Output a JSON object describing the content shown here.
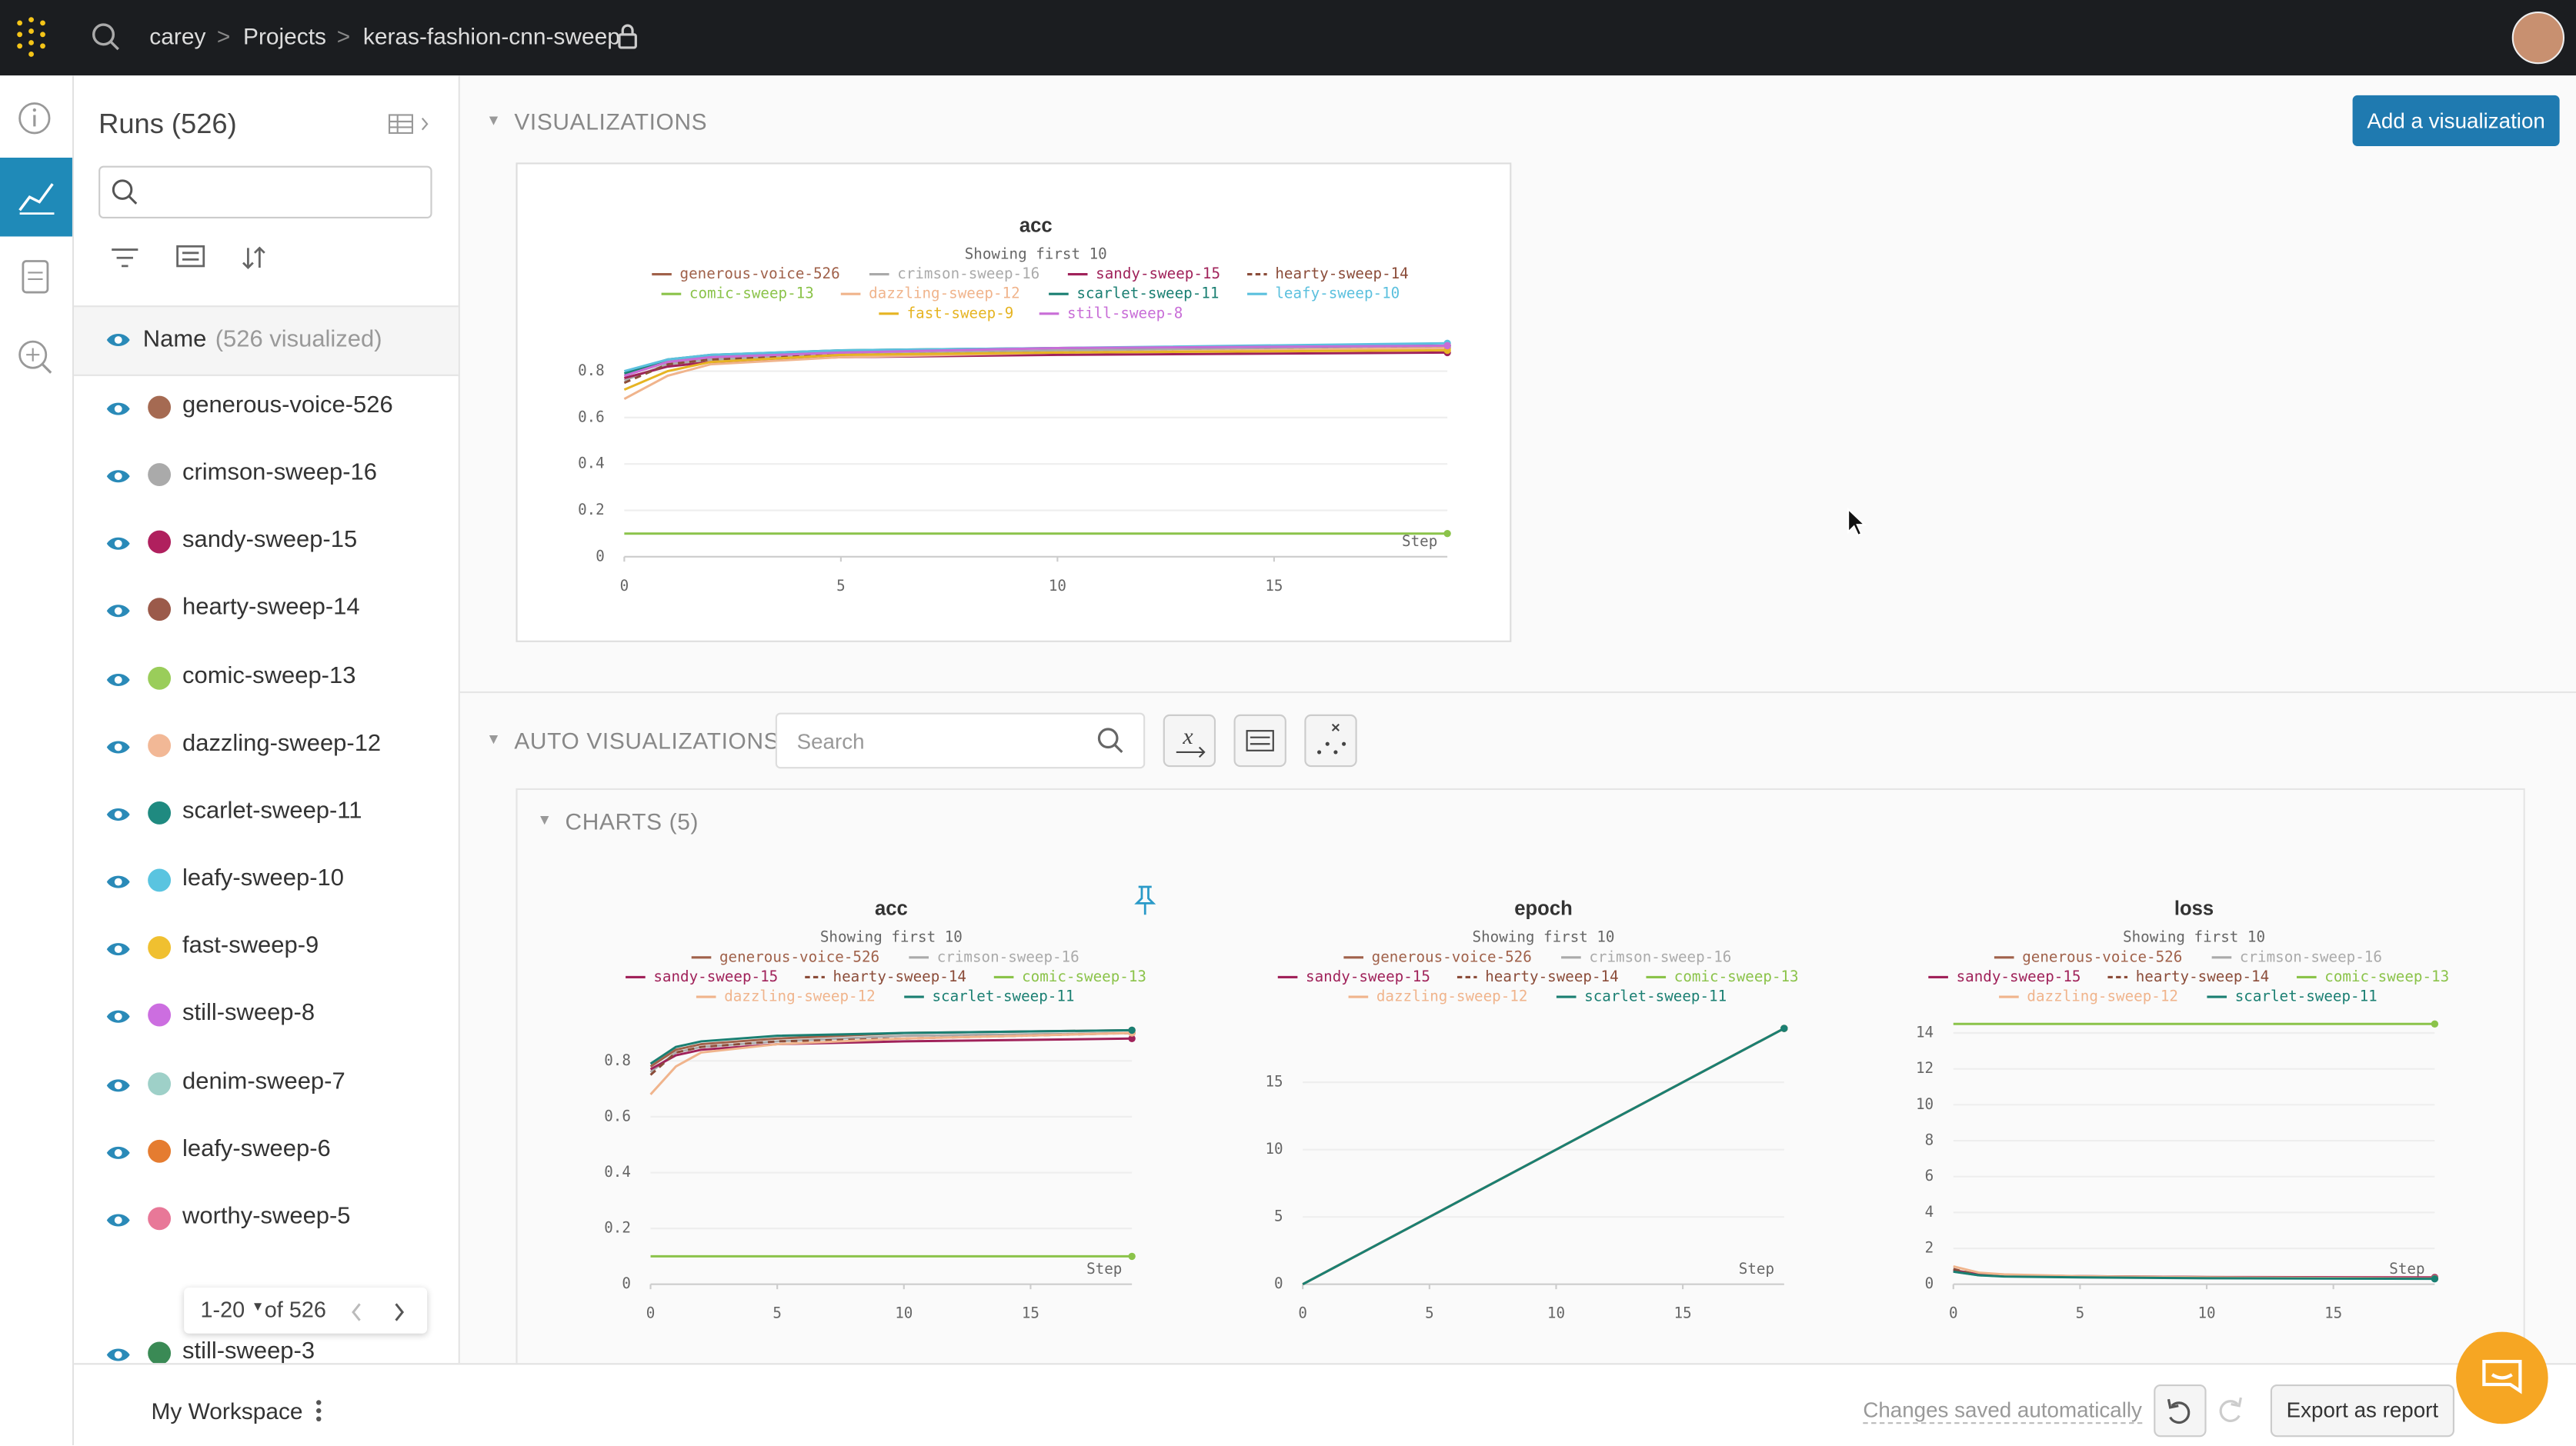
{
  "header": {
    "breadcrumbs": [
      "carey",
      "Projects",
      "keras-fashion-cnn-sweep"
    ]
  },
  "runs_panel": {
    "title": "Runs (526)",
    "name_header": "Name",
    "visualized": "(526 visualized)",
    "runs": [
      {
        "name": "generous-voice-526",
        "color": "#a56a52"
      },
      {
        "name": "crimson-sweep-16",
        "color": "#aaaaaa"
      },
      {
        "name": "sandy-sweep-15",
        "color": "#b0205e"
      },
      {
        "name": "hearty-sweep-14",
        "color": "#9b5a4a"
      },
      {
        "name": "comic-sweep-13",
        "color": "#9acd5a"
      },
      {
        "name": "dazzling-sweep-12",
        "color": "#f2b896"
      },
      {
        "name": "scarlet-sweep-11",
        "color": "#1f8a80"
      },
      {
        "name": "leafy-sweep-10",
        "color": "#5ac4e0"
      },
      {
        "name": "fast-sweep-9",
        "color": "#f0c030"
      },
      {
        "name": "still-sweep-8",
        "color": "#cc6ee0"
      },
      {
        "name": "denim-sweep-7",
        "color": "#9ed0c8"
      },
      {
        "name": "leafy-sweep-6",
        "color": "#e57c30"
      },
      {
        "name": "worthy-sweep-5",
        "color": "#e87898"
      },
      {
        "name": "still-sweep-3",
        "color": "#3a8a55"
      }
    ],
    "pagination": {
      "range": "1-20",
      "total": "of 526"
    }
  },
  "visualizations": {
    "title": "VISUALIZATIONS",
    "add_button": "Add a visualization"
  },
  "auto_visualizations": {
    "title": "AUTO VISUALIZATIONS",
    "search_placeholder": "Search",
    "charts_section": "CHARTS (5)"
  },
  "footer": {
    "workspace": "My Workspace",
    "saved": "Changes saved automatically",
    "export": "Export as report"
  },
  "chart_data": [
    {
      "type": "line",
      "title": "acc",
      "subtitle": "Showing first 10",
      "xlabel": "Step",
      "x": [
        0,
        1,
        2,
        5,
        10,
        19
      ],
      "xlim": [
        0,
        19
      ],
      "xticks": [
        0,
        5,
        10,
        15
      ],
      "ylim": [
        0,
        0.95
      ],
      "yticks": [
        0,
        0.2,
        0.4,
        0.6,
        0.8
      ],
      "grid": true,
      "series": [
        {
          "name": "generous-voice-526",
          "color": "#a0614a",
          "values": [
            0.78,
            0.84,
            0.86,
            0.88,
            0.9,
            0.91
          ]
        },
        {
          "name": "crimson-sweep-16",
          "color": "#aaaaaa",
          "values": [
            0.76,
            0.83,
            0.85,
            0.87,
            0.89,
            0.9
          ]
        },
        {
          "name": "sandy-sweep-15",
          "color": "#a0225a",
          "values": [
            0.77,
            0.82,
            0.84,
            0.86,
            0.87,
            0.88
          ]
        },
        {
          "name": "hearty-sweep-14",
          "color": "#8b4c39",
          "dashed": true,
          "values": [
            0.75,
            0.83,
            0.85,
            0.87,
            0.88,
            0.9
          ]
        },
        {
          "name": "comic-sweep-13",
          "color": "#8bc34a",
          "values": [
            0.1,
            0.1,
            0.1,
            0.1,
            0.1,
            0.1
          ]
        },
        {
          "name": "dazzling-sweep-12",
          "color": "#f0b48c",
          "values": [
            0.68,
            0.78,
            0.83,
            0.86,
            0.88,
            0.9
          ]
        },
        {
          "name": "scarlet-sweep-11",
          "color": "#1a7f72",
          "values": [
            0.79,
            0.85,
            0.87,
            0.89,
            0.9,
            0.91
          ]
        },
        {
          "name": "leafy-sweep-10",
          "color": "#5bc0de",
          "values": [
            0.8,
            0.85,
            0.87,
            0.89,
            0.9,
            0.92
          ]
        },
        {
          "name": "fast-sweep-9",
          "color": "#e6b422",
          "values": [
            0.72,
            0.8,
            0.84,
            0.87,
            0.88,
            0.89
          ]
        },
        {
          "name": "still-sweep-8",
          "color": "#c86dd7",
          "values": [
            0.78,
            0.84,
            0.86,
            0.88,
            0.9,
            0.91
          ]
        }
      ]
    },
    {
      "type": "line",
      "title": "acc",
      "subtitle": "Showing first 10",
      "xlabel": "Step",
      "x": [
        0,
        1,
        2,
        5,
        10,
        19
      ],
      "xlim": [
        0,
        19
      ],
      "xticks": [
        0,
        5,
        10,
        15
      ],
      "ylim": [
        0,
        0.95
      ],
      "yticks": [
        0,
        0.2,
        0.4,
        0.6,
        0.8
      ],
      "grid": true,
      "series": [
        {
          "name": "generous-voice-526",
          "color": "#a0614a",
          "values": [
            0.78,
            0.84,
            0.86,
            0.88,
            0.9,
            0.91
          ]
        },
        {
          "name": "crimson-sweep-16",
          "color": "#aaaaaa",
          "values": [
            0.76,
            0.83,
            0.85,
            0.87,
            0.89,
            0.9
          ]
        },
        {
          "name": "sandy-sweep-15",
          "color": "#a0225a",
          "values": [
            0.77,
            0.82,
            0.84,
            0.86,
            0.87,
            0.88
          ]
        },
        {
          "name": "hearty-sweep-14",
          "color": "#8b4c39",
          "dashed": true,
          "values": [
            0.75,
            0.83,
            0.85,
            0.87,
            0.88,
            0.9
          ]
        },
        {
          "name": "comic-sweep-13",
          "color": "#8bc34a",
          "values": [
            0.1,
            0.1,
            0.1,
            0.1,
            0.1,
            0.1
          ]
        },
        {
          "name": "dazzling-sweep-12",
          "color": "#f0b48c",
          "values": [
            0.68,
            0.78,
            0.83,
            0.86,
            0.88,
            0.9
          ]
        },
        {
          "name": "scarlet-sweep-11",
          "color": "#1a7f72",
          "values": [
            0.79,
            0.85,
            0.87,
            0.89,
            0.9,
            0.91
          ]
        }
      ]
    },
    {
      "type": "line",
      "title": "epoch",
      "subtitle": "Showing first 10",
      "xlabel": "Step",
      "x": [
        0,
        1,
        2,
        5,
        10,
        19
      ],
      "xlim": [
        0,
        19
      ],
      "xticks": [
        0,
        5,
        10,
        15
      ],
      "ylim": [
        0,
        19
      ],
      "yticks": [
        0,
        5,
        10,
        15
      ],
      "grid": true,
      "series": [
        {
          "name": "generous-voice-526",
          "color": "#a0614a",
          "values": [
            0,
            1,
            2,
            5,
            10,
            19
          ]
        },
        {
          "name": "crimson-sweep-16",
          "color": "#aaaaaa",
          "values": [
            0,
            1,
            2,
            5,
            10,
            19
          ]
        },
        {
          "name": "sandy-sweep-15",
          "color": "#a0225a",
          "values": [
            0,
            1,
            2,
            5,
            10,
            19
          ]
        },
        {
          "name": "hearty-sweep-14",
          "color": "#8b4c39",
          "dashed": true,
          "values": [
            0,
            1,
            2,
            5,
            10,
            19
          ]
        },
        {
          "name": "comic-sweep-13",
          "color": "#8bc34a",
          "values": [
            0,
            1,
            2,
            5,
            10,
            19
          ]
        },
        {
          "name": "dazzling-sweep-12",
          "color": "#f0b48c",
          "values": [
            0,
            1,
            2,
            5,
            10,
            19
          ]
        },
        {
          "name": "scarlet-sweep-11",
          "color": "#1a7f72",
          "values": [
            0,
            1,
            2,
            5,
            10,
            19
          ]
        }
      ]
    },
    {
      "type": "line",
      "title": "loss",
      "subtitle": "Showing first 10",
      "xlabel": "Step",
      "x": [
        0,
        1,
        2,
        5,
        10,
        19
      ],
      "xlim": [
        0,
        19
      ],
      "xticks": [
        0,
        5,
        10,
        15
      ],
      "ylim": [
        0,
        15
      ],
      "yticks": [
        0,
        2,
        4,
        6,
        8,
        10,
        12,
        14
      ],
      "grid": true,
      "series": [
        {
          "name": "generous-voice-526",
          "color": "#a0614a",
          "values": [
            0.8,
            0.55,
            0.5,
            0.45,
            0.4,
            0.35
          ]
        },
        {
          "name": "crimson-sweep-16",
          "color": "#aaaaaa",
          "values": [
            0.7,
            0.5,
            0.45,
            0.4,
            0.37,
            0.33
          ]
        },
        {
          "name": "sandy-sweep-15",
          "color": "#a0225a",
          "values": [
            0.75,
            0.55,
            0.5,
            0.45,
            0.4,
            0.38
          ]
        },
        {
          "name": "hearty-sweep-14",
          "color": "#8b4c39",
          "dashed": true,
          "values": [
            0.85,
            0.5,
            0.46,
            0.42,
            0.38,
            0.33
          ]
        },
        {
          "name": "comic-sweep-13",
          "color": "#8bc34a",
          "values": [
            14.5,
            14.5,
            14.5,
            14.5,
            14.5,
            14.5
          ]
        },
        {
          "name": "dazzling-sweep-12",
          "color": "#f0b48c",
          "values": [
            1.0,
            0.65,
            0.55,
            0.45,
            0.38,
            0.32
          ]
        },
        {
          "name": "scarlet-sweep-11",
          "color": "#1a7f72",
          "values": [
            0.7,
            0.5,
            0.43,
            0.38,
            0.34,
            0.3
          ]
        }
      ]
    }
  ]
}
